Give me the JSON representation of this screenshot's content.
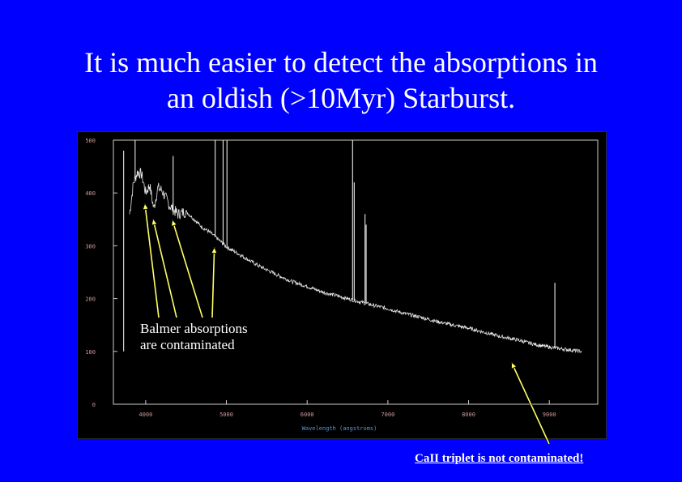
{
  "title_line1": "It is much easier to detect the absorptions in",
  "title_line2": "an oldish (>10Myr) Starburst.",
  "annotations": {
    "balmer_line1": "Balmer absorptions",
    "balmer_line2": "are contaminated",
    "ca_triplet": "CaII triplet is not contaminated!"
  },
  "colors": {
    "background": "#0000ff",
    "plot_background": "#000000",
    "spectrum": "#e8e8e8",
    "axis_text": "#cc9999",
    "xlabel_text": "#5599dd",
    "axis_frame": "#cccccc",
    "arrow": "#ffff66"
  },
  "chart_data": {
    "type": "line",
    "xlabel": "Wavelength (angstroms)",
    "ylabel": "",
    "xlim": [
      3600,
      9600
    ],
    "ylim": [
      0,
      500
    ],
    "x_ticks": [
      4000,
      5000,
      6000,
      7000,
      8000,
      9000
    ],
    "y_ticks": [
      0,
      100,
      200,
      300,
      400,
      500
    ],
    "grid": false,
    "series": [
      {
        "x": [
          3800,
          3850,
          3900,
          3950,
          4000,
          4050,
          4100,
          4150,
          4200,
          4300,
          4400,
          4500,
          4600,
          4700,
          4800,
          4900,
          5000,
          5200,
          5400,
          5600,
          5800,
          6000,
          6200,
          6400,
          6600,
          6800,
          7000,
          7200,
          7400,
          7600,
          7800,
          8000,
          8200,
          8400,
          8600,
          8800,
          9000,
          9200,
          9400
        ],
        "y": [
          360,
          420,
          440,
          435,
          400,
          415,
          370,
          410,
          405,
          375,
          360,
          365,
          350,
          335,
          325,
          312,
          298,
          280,
          262,
          247,
          233,
          223,
          212,
          204,
          196,
          188,
          181,
          172,
          165,
          157,
          150,
          144,
          136,
          128,
          122,
          114,
          108,
          104,
          100
        ]
      }
    ],
    "emission_lines": [
      {
        "x": 3727,
        "y": 480
      },
      {
        "x": 3869,
        "y": 500
      },
      {
        "x": 4340,
        "y": 470
      },
      {
        "x": 4861,
        "y": 500
      },
      {
        "x": 4959,
        "y": 500
      },
      {
        "x": 5007,
        "y": 500
      },
      {
        "x": 6563,
        "y": 500
      },
      {
        "x": 6583,
        "y": 420
      },
      {
        "x": 6717,
        "y": 360
      },
      {
        "x": 6731,
        "y": 340
      },
      {
        "x": 9069,
        "y": 230
      }
    ],
    "absorption_arrows_x": [
      4000,
      4101,
      4340,
      4861
    ],
    "ca_arrow_x": [
      8542
    ]
  }
}
